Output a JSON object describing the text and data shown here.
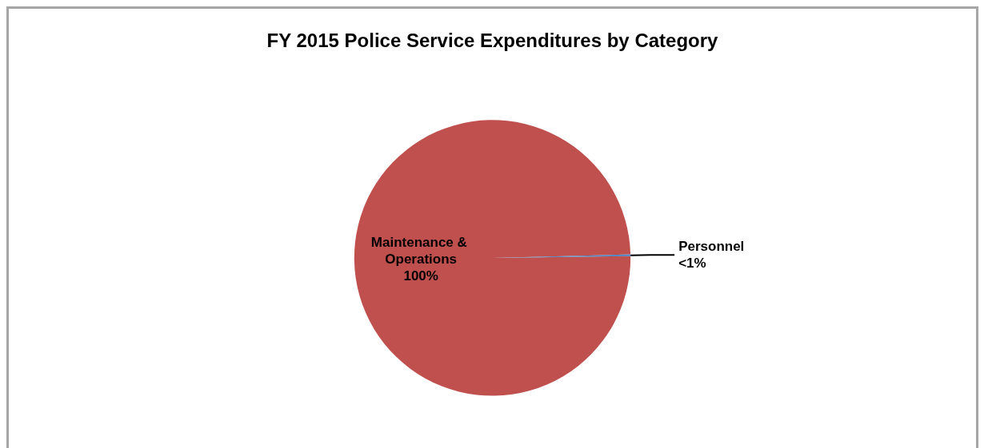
{
  "chart_data": {
    "type": "pie",
    "title": "FY 2015 Police Service Expenditures by Category",
    "categories": [
      "Maintenance & Operations",
      "Personnel"
    ],
    "values": [
      99.8,
      0.2
    ],
    "value_labels": [
      "100%",
      "<1%"
    ],
    "colors": [
      "#c0504d",
      "#4f81bd"
    ],
    "legend": false
  }
}
